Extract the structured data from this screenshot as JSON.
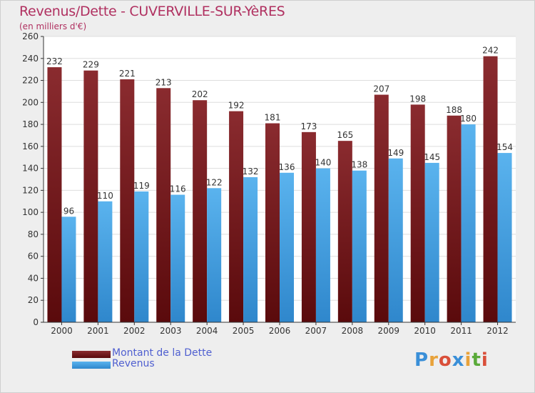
{
  "title": "Revenus/Dette - CUVERVILLE-SUR-YèRES",
  "subtitle": "(en milliers d'€)",
  "logo_text": "Proxiti",
  "colors": {
    "dette": "#6e1a1e",
    "revenus": "#3f9ee0",
    "text": "#b03060",
    "legend_text": "#4f5fd0"
  },
  "chart_data": {
    "type": "bar",
    "title": "Revenus/Dette - CUVERVILLE-SUR-YèRES",
    "subtitle": "(en milliers d'€)",
    "xlabel": "",
    "ylabel": "(en milliers d'€)",
    "ylim": [
      0,
      260
    ],
    "yticks": [
      0,
      20,
      40,
      60,
      80,
      100,
      120,
      140,
      160,
      180,
      200,
      220,
      240,
      260
    ],
    "grid": true,
    "legend_position": "bottom-left",
    "categories": [
      "2000",
      "2001",
      "2002",
      "2003",
      "2004",
      "2005",
      "2006",
      "2007",
      "2008",
      "2009",
      "2010",
      "2011",
      "2012"
    ],
    "series": [
      {
        "name": "Montant de la Dette",
        "values": [
          232,
          229,
          221,
          213,
          202,
          192,
          181,
          173,
          165,
          207,
          198,
          188,
          242
        ]
      },
      {
        "name": "Revenus",
        "values": [
          96,
          110,
          119,
          116,
          122,
          132,
          136,
          140,
          138,
          149,
          145,
          180,
          154
        ]
      }
    ]
  }
}
